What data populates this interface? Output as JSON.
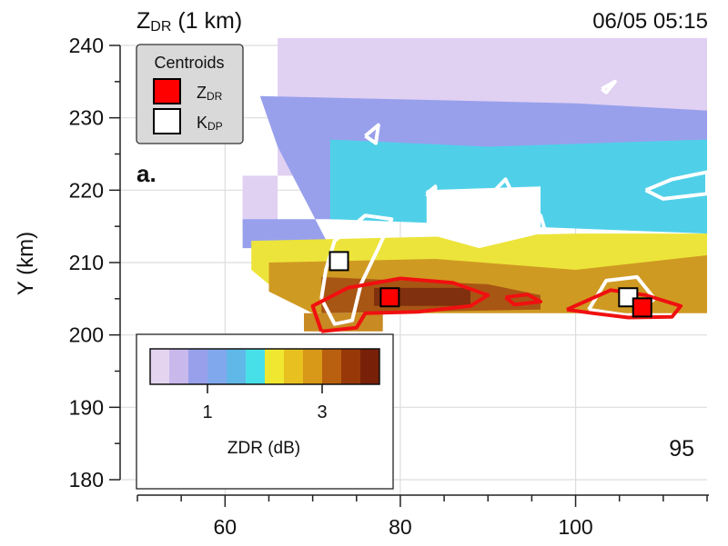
{
  "chart_data": {
    "type": "heatmap",
    "title": "Z",
    "title_sub": "DR",
    "title_suffix": " (1 km)",
    "timestamp": "06/05 05:15",
    "panel_label": "a.",
    "ylabel": "Y (km)",
    "xlabel": "",
    "xlim": [
      50,
      115
    ],
    "ylim": [
      180,
      240
    ],
    "xticks": [
      60,
      80,
      100
    ],
    "yticks": [
      180,
      190,
      200,
      210,
      220,
      230,
      240
    ],
    "grid": true,
    "annotation": "95",
    "legend": {
      "title": "Centroids",
      "placement": "top-left",
      "entries": [
        {
          "label_main": "Z",
          "label_sub": "DR",
          "color": "#ff0000"
        },
        {
          "label_main": "K",
          "label_sub": "DP",
          "color": "#ffffff"
        }
      ]
    },
    "colorbar": {
      "label": "ZDR (dB)",
      "range": [
        0,
        4
      ],
      "ticks": [
        {
          "value": 1,
          "label": "1"
        },
        {
          "value": 3,
          "label": "3"
        }
      ],
      "colors": [
        "#e4d4f0",
        "#c8b8ec",
        "#98a0ec",
        "#80a8ec",
        "#60b8e8",
        "#48e0e8",
        "#f0e830",
        "#e8c020",
        "#d89818",
        "#b86010",
        "#983808",
        "#782008"
      ]
    },
    "field_regions": [
      {
        "level_dB": 0.2,
        "color": "#e0d0f2",
        "polygon": [
          [
            66,
            241
          ],
          [
            115,
            241
          ],
          [
            115,
            222
          ],
          [
            62,
            222
          ],
          [
            62,
            214
          ],
          [
            66,
            214
          ]
        ]
      },
      {
        "level_dB": 0.8,
        "color": "#98a0ec",
        "polygon": [
          [
            64,
            233
          ],
          [
            100,
            232
          ],
          [
            115,
            231
          ],
          [
            115,
            216
          ],
          [
            62,
            216
          ],
          [
            62,
            212
          ],
          [
            72,
            212
          ],
          [
            66,
            226
          ]
        ]
      },
      {
        "level_dB": 1.8,
        "color": "#50d0e8",
        "polygon": [
          [
            72,
            227
          ],
          [
            90,
            226
          ],
          [
            115,
            227
          ],
          [
            115,
            214
          ],
          [
            72,
            216
          ]
        ]
      },
      {
        "level_dB": 2.2,
        "color": "#ece43a",
        "polygon": [
          [
            63,
            213
          ],
          [
            100,
            214
          ],
          [
            115,
            214
          ],
          [
            115,
            205
          ],
          [
            66,
            206
          ],
          [
            63,
            209
          ]
        ]
      },
      {
        "level_dB": 2.8,
        "color": "#cf9a22",
        "polygon": [
          [
            65,
            210
          ],
          [
            84,
            210.5
          ],
          [
            100,
            209
          ],
          [
            115,
            211
          ],
          [
            115,
            203
          ],
          [
            70,
            203
          ],
          [
            65,
            206
          ]
        ]
      },
      {
        "level_dB": 3.4,
        "color": "#a85614",
        "polygon": [
          [
            71,
            208
          ],
          [
            90,
            207
          ],
          [
            96,
            205.5
          ],
          [
            96,
            203.5
          ],
          [
            71,
            203
          ]
        ]
      },
      {
        "level_dB": 3.8,
        "color": "#80300e",
        "polygon": [
          [
            77,
            206.5
          ],
          [
            88,
            206.5
          ],
          [
            88,
            204
          ],
          [
            77,
            204
          ]
        ]
      },
      {
        "level_dB": 2.8,
        "color": "#c88a22",
        "polygon": [
          [
            69,
            203
          ],
          [
            78,
            203
          ],
          [
            78,
            200.5
          ],
          [
            69,
            200.5
          ]
        ]
      },
      {
        "level_dB": null,
        "color": "#ffffff",
        "polygon": [
          [
            83,
            220
          ],
          [
            96,
            220.5
          ],
          [
            96,
            214
          ],
          [
            89,
            212
          ],
          [
            83,
            214
          ]
        ]
      }
    ],
    "zdr_contours": [
      [
        [
          71,
          200.5
        ],
        [
          70,
          204
        ],
        [
          74,
          206.5
        ],
        [
          80,
          207.8
        ],
        [
          86,
          207.2
        ],
        [
          90,
          205.5
        ],
        [
          88,
          204
        ],
        [
          82,
          203.2
        ],
        [
          76,
          203
        ],
        [
          75,
          201
        ],
        [
          71,
          200.5
        ]
      ],
      [
        [
          99,
          203.5
        ],
        [
          104,
          206.2
        ],
        [
          108,
          205.5
        ],
        [
          112,
          204
        ],
        [
          111,
          202.5
        ],
        [
          106,
          202.4
        ],
        [
          102,
          203
        ],
        [
          99,
          203.5
        ]
      ],
      [
        [
          92,
          205.2
        ],
        [
          94.5,
          205.6
        ],
        [
          96,
          204.6
        ],
        [
          93,
          204.2
        ],
        [
          92,
          205.2
        ]
      ]
    ],
    "kdp_contours": [
      [
        [
          71,
          205
        ],
        [
          71.5,
          209
        ],
        [
          72.5,
          213
        ],
        [
          76,
          216.5
        ],
        [
          79,
          216
        ],
        [
          77.5,
          212
        ],
        [
          75.5,
          207
        ],
        [
          74.5,
          202
        ],
        [
          72.5,
          201.5
        ],
        [
          71,
          205
        ]
      ],
      [
        [
          101.5,
          203.5
        ],
        [
          103.5,
          207.5
        ],
        [
          107,
          208
        ],
        [
          109,
          205
        ],
        [
          106.5,
          202.6
        ],
        [
          101.5,
          203.5
        ]
      ],
      [
        [
          108,
          220
        ],
        [
          111,
          221.5
        ],
        [
          115,
          222.5
        ],
        [
          115,
          219.5
        ],
        [
          110,
          218.8
        ],
        [
          108,
          220
        ]
      ],
      [
        [
          76,
          227.5
        ],
        [
          77.5,
          229
        ],
        [
          77.2,
          226.5
        ],
        [
          76,
          227.5
        ]
      ],
      [
        [
          83,
          219.5
        ],
        [
          84,
          220.5
        ],
        [
          84,
          218
        ],
        [
          83,
          219.5
        ]
      ],
      [
        [
          90,
          219
        ],
        [
          92,
          221.5
        ],
        [
          93,
          219
        ],
        [
          90.5,
          217.5
        ],
        [
          90,
          219
        ]
      ],
      [
        [
          95,
          215
        ],
        [
          96,
          216.5
        ],
        [
          96.5,
          214.5
        ],
        [
          95,
          215
        ]
      ],
      [
        [
          103,
          234
        ],
        [
          104.5,
          235
        ],
        [
          103.5,
          233.5
        ],
        [
          103,
          234
        ]
      ]
    ],
    "centroids": {
      "zdr": [
        [
          78.8,
          205.2
        ],
        [
          107.6,
          203.8
        ]
      ],
      "kdp": [
        [
          73.0,
          210.2
        ],
        [
          106.0,
          205.2
        ]
      ]
    }
  }
}
